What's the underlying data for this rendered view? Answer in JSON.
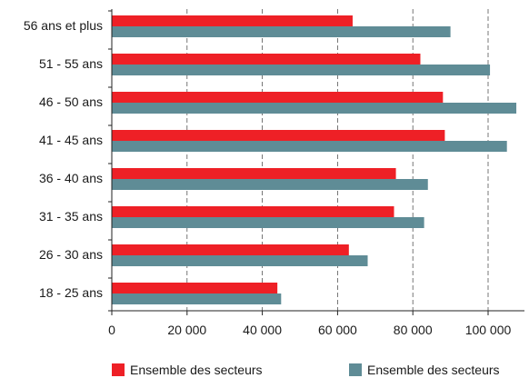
{
  "chart_data": {
    "type": "bar",
    "orientation": "horizontal",
    "categories": [
      "56 ans et plus",
      "51 - 55 ans",
      "46 - 50 ans",
      "41 - 45 ans",
      "36 - 40 ans",
      "31 - 35 ans",
      "26 - 30 ans",
      "18 - 25 ans"
    ],
    "series": [
      {
        "name": "Ensemble des secteurs",
        "color": "#ee2026",
        "values": [
          64000,
          82000,
          88000,
          88500,
          75500,
          75000,
          63000,
          44000
        ]
      },
      {
        "name": "Ensemble des secteurs",
        "color": "#5f8c96",
        "values": [
          90000,
          100500,
          107500,
          105000,
          84000,
          83000,
          68000,
          45000
        ]
      }
    ],
    "xlim": [
      0,
      110000
    ],
    "x_ticks": [
      0,
      20000,
      40000,
      60000,
      80000,
      100000
    ],
    "x_tick_labels": [
      "0",
      "20 000",
      "40 000",
      "60 000",
      "80 000",
      "100 000"
    ],
    "grid": "vertical dashed",
    "legend_position": "bottom",
    "title": "",
    "xlabel": "",
    "ylabel": ""
  }
}
